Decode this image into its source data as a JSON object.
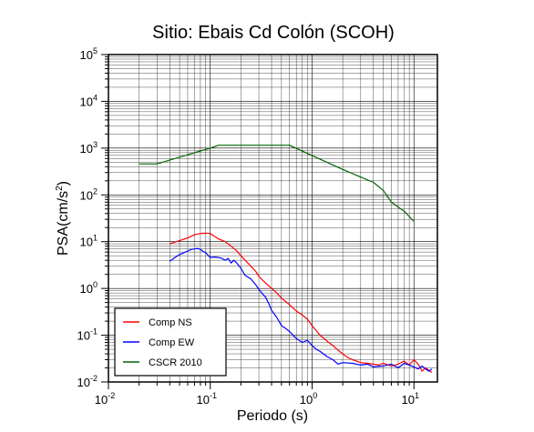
{
  "chart_data": {
    "type": "line",
    "title": "Sitio: Ebais Cd Colón (SCOH)",
    "xlabel": "Periodo (s)",
    "ylabel_base": "PSA(cm/s",
    "ylabel_exp": "2",
    "ylabel_close": ")",
    "x_scale": "log",
    "y_scale": "log",
    "xlim": [
      0.01,
      17
    ],
    "ylim": [
      0.01,
      100000
    ],
    "grid": true,
    "legend_position": "bottom-left",
    "x_ticks": [
      {
        "value": 0.01,
        "base": "10",
        "exp": "-2"
      },
      {
        "value": 0.1,
        "base": "10",
        "exp": "-1"
      },
      {
        "value": 1,
        "base": "10",
        "exp": "0"
      },
      {
        "value": 10,
        "base": "10",
        "exp": "1"
      }
    ],
    "y_ticks": [
      {
        "value": 0.01,
        "base": "10",
        "exp": "-2"
      },
      {
        "value": 0.1,
        "base": "10",
        "exp": "-1"
      },
      {
        "value": 1,
        "base": "10",
        "exp": "0"
      },
      {
        "value": 10,
        "base": "10",
        "exp": "1"
      },
      {
        "value": 100,
        "base": "10",
        "exp": "2"
      },
      {
        "value": 1000,
        "base": "10",
        "exp": "3"
      },
      {
        "value": 10000,
        "base": "10",
        "exp": "4"
      },
      {
        "value": 100000,
        "base": "10",
        "exp": "5"
      }
    ],
    "series": [
      {
        "name": "Comp NS",
        "color": "#ff0000",
        "x": [
          0.04,
          0.05,
          0.06,
          0.07,
          0.08,
          0.09,
          0.1,
          0.11,
          0.12,
          0.14,
          0.16,
          0.18,
          0.2,
          0.22,
          0.25,
          0.28,
          0.3,
          0.35,
          0.4,
          0.45,
          0.5,
          0.6,
          0.7,
          0.8,
          0.9,
          1.0,
          1.2,
          1.4,
          1.6,
          1.8,
          2.0,
          2.2,
          2.5,
          3.0,
          3.5,
          4.0,
          4.5,
          5.0,
          6.0,
          7.0,
          8.0,
          9.0,
          10.0,
          11.0,
          12.0,
          13.0,
          15.0
        ],
        "y": [
          9,
          10.5,
          12,
          14,
          15,
          15.2,
          15,
          13,
          11.5,
          10,
          8,
          6.5,
          5,
          4,
          3,
          2.3,
          1.8,
          1.3,
          1.0,
          0.8,
          0.62,
          0.45,
          0.33,
          0.27,
          0.22,
          0.16,
          0.1,
          0.075,
          0.06,
          0.048,
          0.04,
          0.034,
          0.03,
          0.026,
          0.025,
          0.024,
          0.023,
          0.025,
          0.022,
          0.024,
          0.028,
          0.023,
          0.03,
          0.024,
          0.017,
          0.02,
          0.016
        ]
      },
      {
        "name": "Comp EW",
        "color": "#0000ff",
        "x": [
          0.04,
          0.045,
          0.05,
          0.055,
          0.06,
          0.065,
          0.07,
          0.075,
          0.08,
          0.085,
          0.09,
          0.1,
          0.11,
          0.12,
          0.13,
          0.14,
          0.15,
          0.16,
          0.17,
          0.18,
          0.2,
          0.22,
          0.25,
          0.28,
          0.3,
          0.32,
          0.35,
          0.38,
          0.4,
          0.45,
          0.5,
          0.55,
          0.6,
          0.7,
          0.8,
          0.9,
          1.0,
          1.1,
          1.2,
          1.4,
          1.6,
          1.8,
          2.0,
          2.5,
          3.0,
          3.5,
          4.0,
          5.0,
          6.0,
          7.0,
          8.0,
          9.0,
          10.0,
          11.0,
          12.0,
          13.0,
          14.0,
          15.0
        ],
        "y": [
          3.8,
          4.6,
          5.3,
          5.8,
          6.3,
          6.8,
          7.0,
          7.2,
          6.8,
          6.2,
          5.8,
          4.6,
          4.7,
          4.6,
          4.4,
          4.0,
          4.4,
          3.5,
          4.0,
          3.6,
          2.7,
          1.9,
          1.6,
          1.2,
          0.95,
          0.8,
          0.65,
          0.45,
          0.34,
          0.24,
          0.16,
          0.14,
          0.12,
          0.085,
          0.07,
          0.078,
          0.06,
          0.05,
          0.045,
          0.035,
          0.03,
          0.024,
          0.026,
          0.025,
          0.023,
          0.024,
          0.021,
          0.022,
          0.024,
          0.02,
          0.025,
          0.023,
          0.021,
          0.019,
          0.022,
          0.019,
          0.017,
          0.019
        ]
      },
      {
        "name": "CSCR 2010",
        "color": "#006400",
        "x": [
          0.02,
          0.03,
          0.045,
          0.06,
          0.08,
          0.1,
          0.12,
          0.15,
          0.2,
          0.3,
          0.4,
          0.5,
          0.6,
          1.0,
          2.0,
          3.0,
          4.0,
          5.0,
          6.0,
          7.0,
          8.0,
          10.0
        ],
        "y": [
          460,
          460,
          600,
          720,
          870,
          1000,
          1150,
          1150,
          1150,
          1150,
          1150,
          1150,
          1150,
          690,
          350,
          240,
          185,
          125,
          70,
          55,
          45,
          27
        ]
      }
    ]
  }
}
